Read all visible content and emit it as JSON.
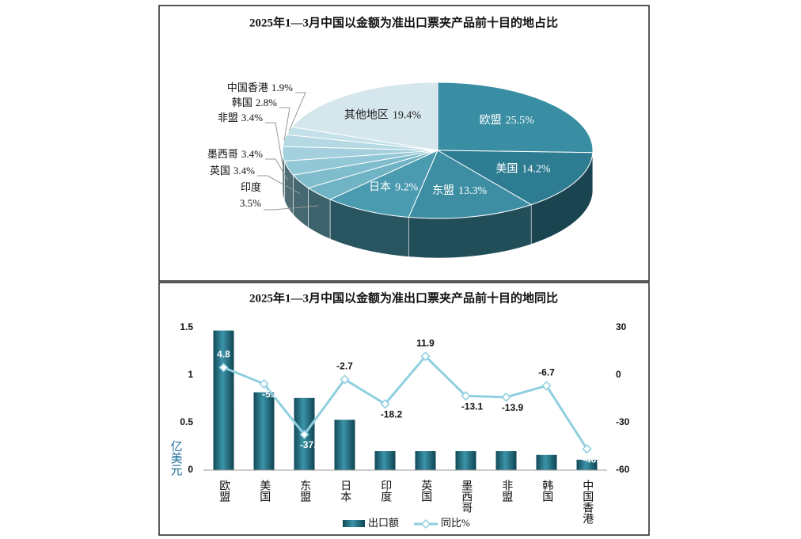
{
  "chart_data": [
    {
      "type": "pie",
      "title": "2025年1—3月中国以金额为准出口票夹产品前十目的地占比",
      "categories": [
        "欧盟",
        "美国",
        "东盟",
        "日本",
        "印度",
        "英国",
        "墨西哥",
        "非盟",
        "韩国",
        "中国香港",
        "其他地区"
      ],
      "values": [
        25.5,
        14.2,
        13.3,
        9.2,
        3.5,
        3.4,
        3.4,
        3.4,
        2.8,
        1.9,
        19.4
      ],
      "value_labels": [
        "25.5%",
        "14.2%",
        "13.3%",
        "9.2%",
        "3.5%",
        "3.4%",
        "3.4%",
        "3.4%",
        "2.8%",
        "1.9%",
        "19.4%"
      ],
      "colors": [
        "#3a8ea4",
        "#2e7c92",
        "#3d8ea3",
        "#4b9bb0",
        "#6fb3c4",
        "#80bdcc",
        "#92c7d5",
        "#a3d0dc",
        "#b4d9e3",
        "#c4e1e9",
        "#d5e6ec"
      ]
    },
    {
      "type": "bar-line",
      "title": "2025年1—3月中国以金额为准出口票夹产品前十目的地同比",
      "y_label": "亿美元",
      "categories": [
        "欧盟",
        "美国",
        "东盟",
        "日本",
        "印度",
        "英国",
        "墨西哥",
        "非盟",
        "韩国",
        "中国香港"
      ],
      "series": [
        {
          "name": "出口额",
          "color": "#1f6d80",
          "values": [
            1.47,
            0.82,
            0.76,
            0.53,
            0.2,
            0.2,
            0.2,
            0.2,
            0.16,
            0.11
          ]
        },
        {
          "name": "同比%",
          "color": "#8fcfdf",
          "axis": "y2",
          "values": [
            4.8,
            -5.5,
            -37.5,
            -2.7,
            -18.2,
            11.9,
            -13.1,
            -13.9,
            -6.7,
            -46.6
          ]
        }
      ],
      "ylim": [
        0,
        1.5
      ],
      "yticks": [
        0,
        0.5,
        1,
        1.5
      ],
      "y2lim": [
        -60,
        30
      ],
      "y2ticks": [
        -60,
        -30,
        0,
        30
      ]
    }
  ]
}
